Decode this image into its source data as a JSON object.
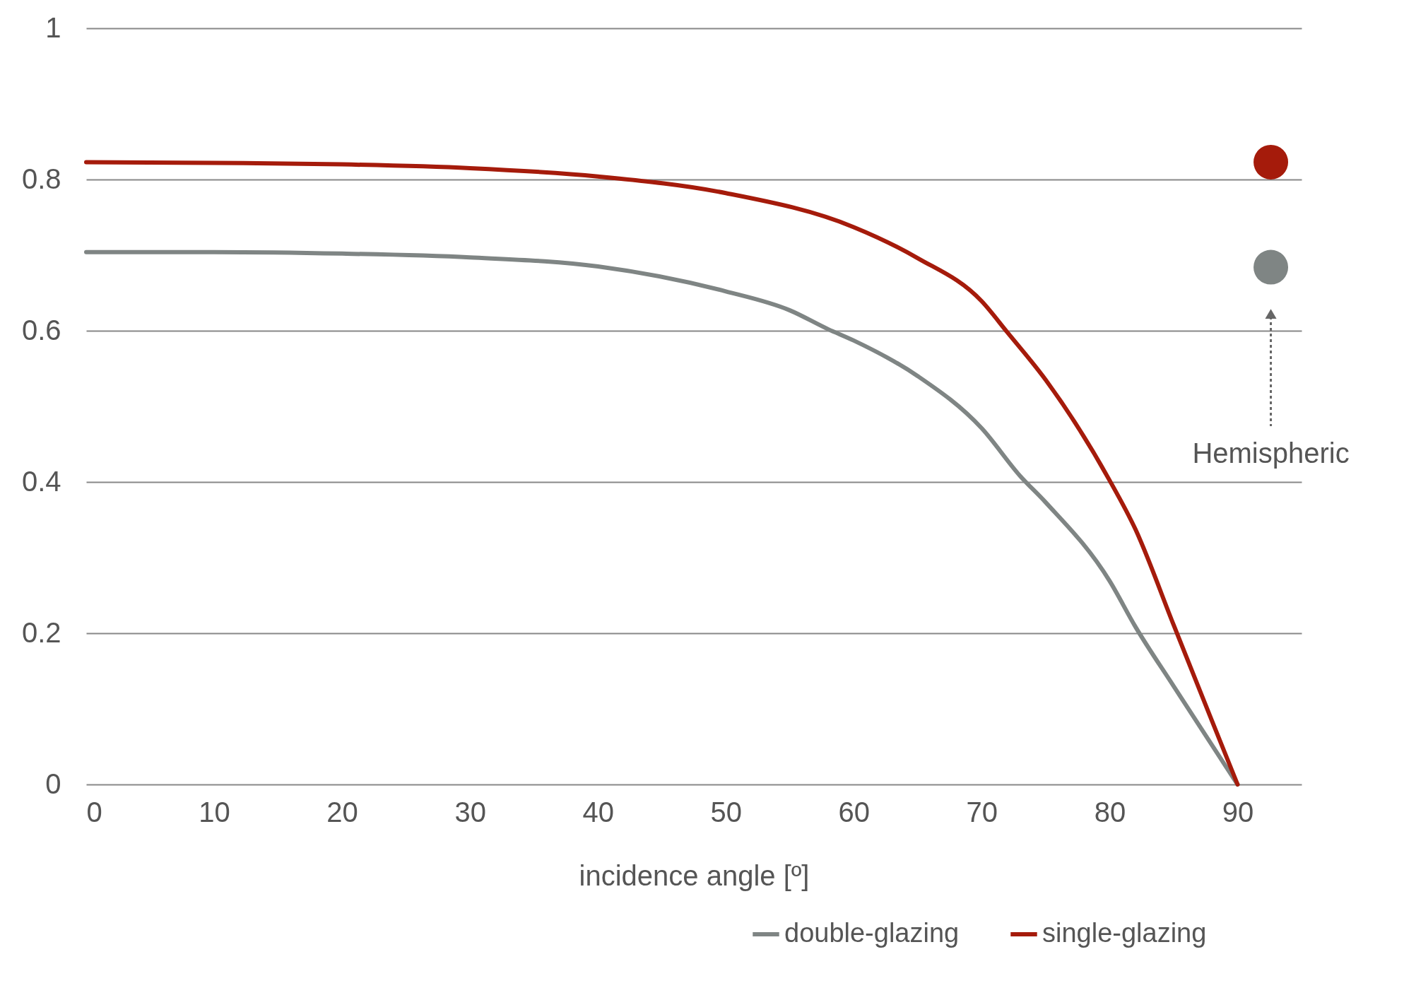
{
  "chart_data": {
    "type": "line",
    "xlabel": "incidence angle [º]",
    "xlim": [
      0,
      95
    ],
    "xticks": [
      0,
      10,
      20,
      30,
      40,
      50,
      60,
      70,
      80,
      90
    ],
    "ylim": [
      0,
      1
    ],
    "yticks": [
      0,
      0.2,
      0.4,
      0.6,
      0.8,
      1
    ],
    "grid": "y",
    "legend": "bottom right",
    "line_style": "solid",
    "annotations": [
      "Hemispheric"
    ],
    "series": [
      {
        "name": "double-glazing",
        "color": "#7f8584",
        "x": [
          0,
          10,
          20,
          30,
          40,
          50,
          55,
          58,
          60,
          65,
          70,
          73,
          75,
          80,
          82,
          85,
          90
        ],
        "values": [
          0.704,
          0.704,
          0.702,
          0.697,
          0.685,
          0.652,
          0.627,
          0.602,
          0.587,
          0.54,
          0.471,
          0.408,
          0.373,
          0.269,
          0.209,
          0.13,
          0
        ]
      },
      {
        "name": "single-glazing",
        "color": "#a51b0b",
        "x": [
          0,
          10,
          20,
          30,
          40,
          50,
          60,
          65,
          70,
          72,
          75,
          80,
          82,
          85,
          88,
          90
        ],
        "values": [
          0.823,
          0.822,
          0.82,
          0.815,
          0.804,
          0.782,
          0.737,
          0.696,
          0.639,
          0.598,
          0.535,
          0.402,
          0.338,
          0.211,
          0.084,
          0
        ]
      },
      {
        "type": "scatter",
        "color": "#a51b0b",
        "x": [
          92.6
        ],
        "values": [
          0.823
        ]
      },
      {
        "type": "scatter",
        "color": "#7f8584",
        "x": [
          92.6
        ],
        "values": [
          0.684
        ]
      }
    ]
  }
}
